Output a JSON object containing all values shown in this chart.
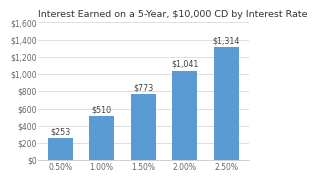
{
  "title": "Interest Earned on a 5-Year, $10,000 CD by Interest Rate",
  "categories": [
    "0.50%",
    "1.00%",
    "1.50%",
    "2.00%",
    "2.50%"
  ],
  "values": [
    253,
    510,
    773,
    1041,
    1314
  ],
  "labels": [
    "$253",
    "$510",
    "$773",
    "$1,041",
    "$1,314"
  ],
  "bar_color": "#5b9bd5",
  "ylim": [
    0,
    1600
  ],
  "yticks": [
    0,
    200,
    400,
    600,
    800,
    1000,
    1200,
    1400,
    1600
  ],
  "ytick_labels": [
    "$0",
    "$200",
    "$400",
    "$600",
    "$800",
    "$1,000",
    "$1,200",
    "$1,400",
    "$1,600"
  ],
  "background_color": "#ffffff",
  "title_fontsize": 6.8,
  "label_fontsize": 5.8,
  "tick_fontsize": 5.5,
  "grid_color": "#d9d9d9"
}
